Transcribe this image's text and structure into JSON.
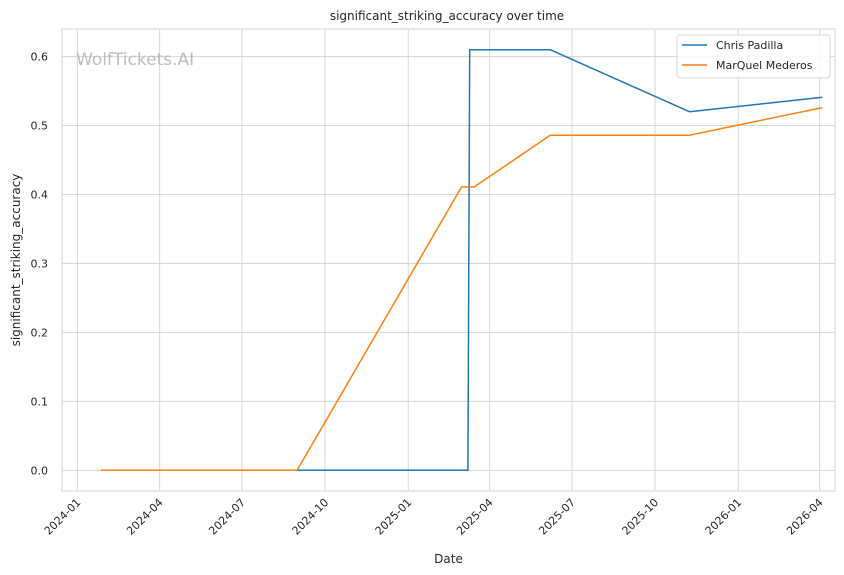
{
  "chart_data": {
    "type": "line",
    "title": "significant_striking_accuracy over time",
    "xlabel": "Date",
    "ylabel": "significant_striking_accuracy",
    "watermark": "WolfTickets.AI",
    "x_axis": {
      "type": "date",
      "range": [
        "2023-12-15",
        "2026-04-18"
      ],
      "ticks": [
        "2024-01-01",
        "2024-04-01",
        "2024-07-01",
        "2024-10-01",
        "2025-01-01",
        "2025-04-01",
        "2025-07-01",
        "2025-10-01",
        "2026-01-01",
        "2026-04-01"
      ],
      "tick_labels": [
        "2024-01",
        "2024-04",
        "2024-07",
        "2024-10",
        "2025-01",
        "2025-04",
        "2025-07",
        "2025-10",
        "2026-01",
        "2026-04"
      ]
    },
    "y_axis": {
      "range": [
        -0.03,
        0.64
      ],
      "ticks": [
        0.0,
        0.1,
        0.2,
        0.3,
        0.4,
        0.5,
        0.6
      ],
      "tick_labels": [
        "0.0",
        "0.1",
        "0.2",
        "0.3",
        "0.4",
        "0.5",
        "0.6"
      ]
    },
    "grid": true,
    "legend": {
      "placement": "top-right"
    },
    "series": [
      {
        "name": "Chris Padilla",
        "color": "#1f77b4",
        "x": [
          "2024-04-28",
          "2025-03-08",
          "2025-03-10",
          "2025-06-07",
          "2025-11-08",
          "2026-04-04"
        ],
        "values": [
          0.0,
          0.0,
          0.61,
          0.61,
          0.52,
          0.541
        ]
      },
      {
        "name": "MarQuel Mederos",
        "color": "#ff7f0e",
        "x": [
          "2024-01-27",
          "2024-08-31",
          "2025-03-01",
          "2025-03-15",
          "2025-06-07",
          "2025-11-08",
          "2026-04-04"
        ],
        "values": [
          0.0,
          0.0,
          0.411,
          0.411,
          0.486,
          0.486,
          0.526
        ]
      }
    ]
  }
}
